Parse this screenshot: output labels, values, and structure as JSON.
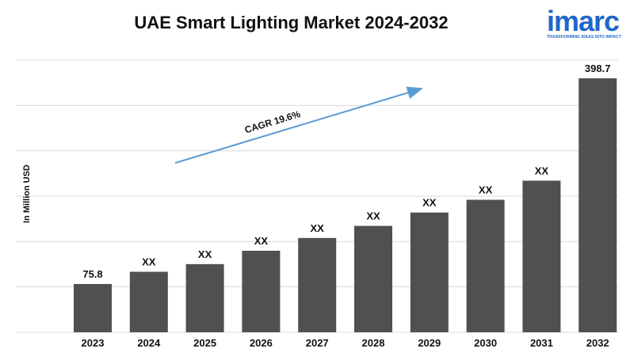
{
  "chart_data": {
    "type": "bar",
    "title": "UAE Smart Lighting Market 2024-2032",
    "ylabel": "In Million USD",
    "xlabel": "",
    "categories": [
      "2023",
      "2024",
      "2025",
      "2026",
      "2027",
      "2028",
      "2029",
      "2030",
      "2031",
      "2032"
    ],
    "values": [
      75.8,
      95,
      107,
      128,
      148,
      167,
      188,
      208,
      238,
      398.7
    ],
    "data_labels": [
      "75.8",
      "XX",
      "XX",
      "XX",
      "XX",
      "XX",
      "XX",
      "XX",
      "XX",
      "398.7"
    ],
    "ylim": [
      0,
      420
    ],
    "grid": true,
    "bar_color": "#505050",
    "annotation": {
      "text": "CAGR 19.6%",
      "color": "#5b9bd5"
    }
  },
  "brand": {
    "name": "imarc",
    "tagline": "TRANSFORMING IDEAS INTO IMPACT",
    "color": "#1f66c8"
  }
}
